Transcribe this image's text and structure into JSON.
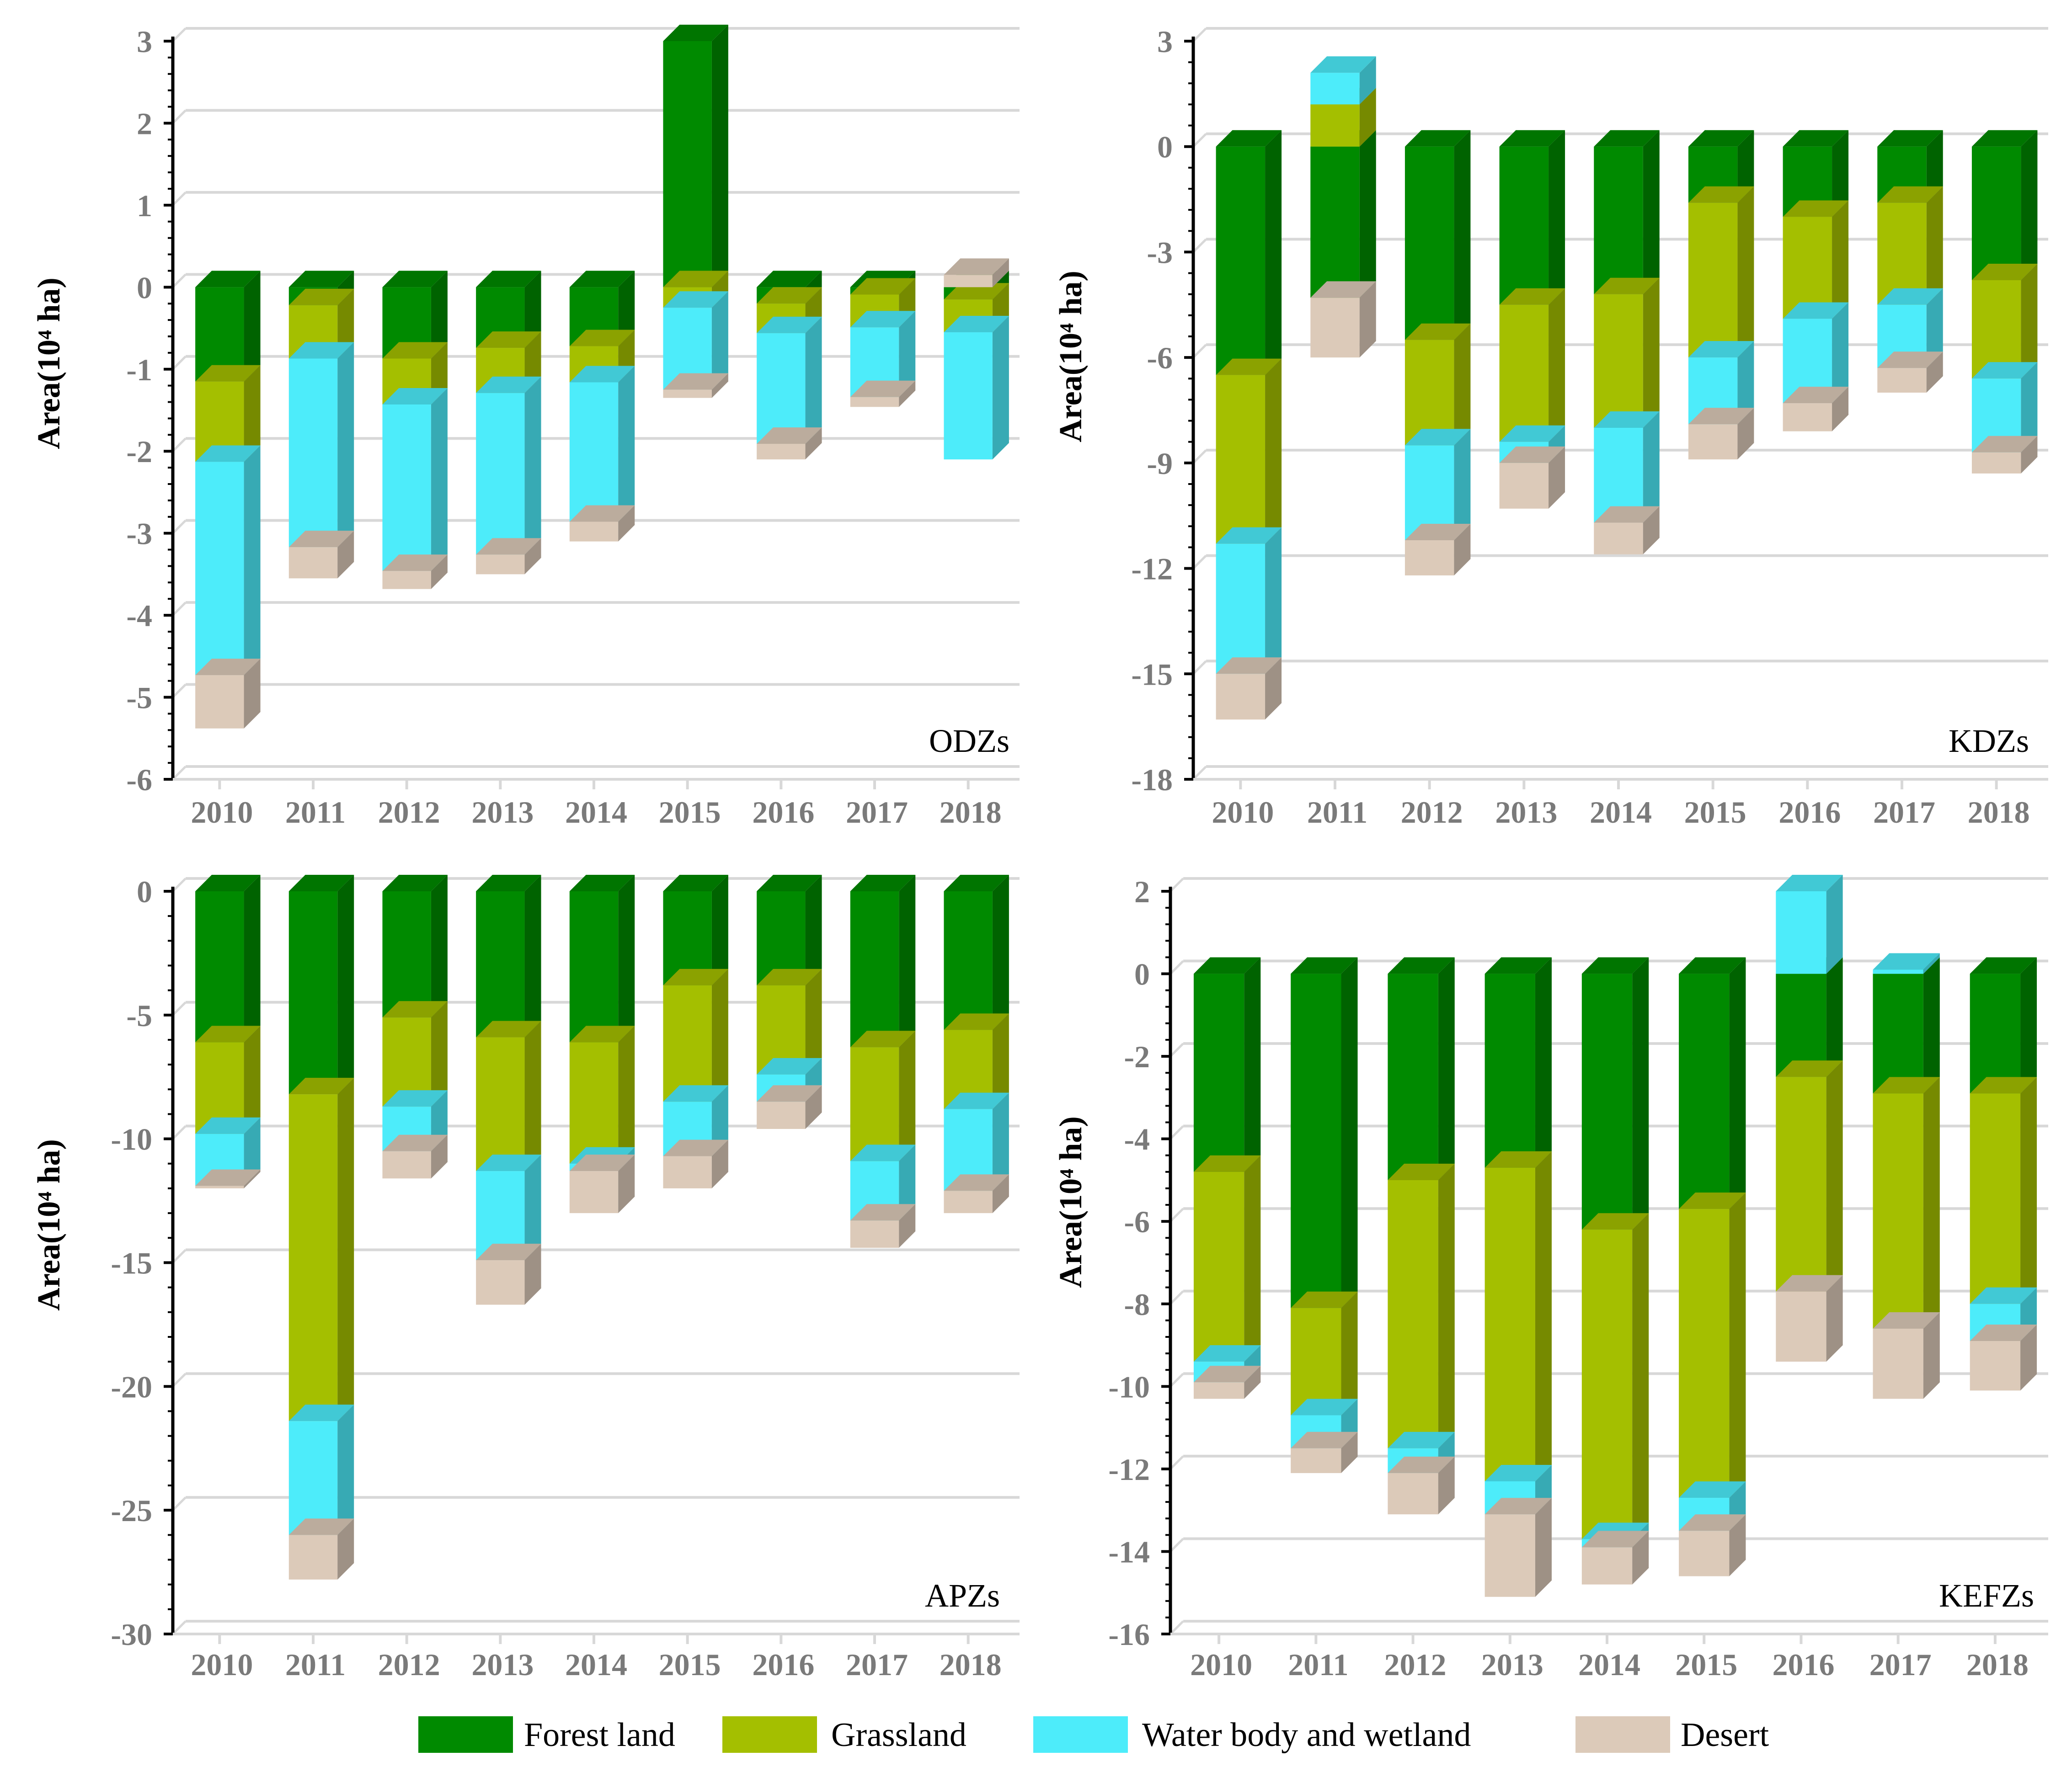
{
  "colors": {
    "forest": "#008a00",
    "grassland": "#a4bf00",
    "water": "#4decfa",
    "desert": "#dccab9",
    "axis": "#000000",
    "grid": "#d8d8d8",
    "tick_text": "#7a7a7a"
  },
  "legend": [
    {
      "key": "forest",
      "label": "Forest land"
    },
    {
      "key": "grassland",
      "label": "Grassland"
    },
    {
      "key": "water",
      "label": "Water body and wetland"
    },
    {
      "key": "desert",
      "label": "Desert"
    }
  ],
  "chart_data": [
    {
      "type": "bar",
      "stacked": true,
      "panel_label": "ODZs",
      "ylabel": "Area(10⁴ ha)",
      "ylim": [
        -6,
        3
      ],
      "yticks": [
        3,
        2,
        1,
        0,
        -1,
        -2,
        -3,
        -4,
        -5,
        -6
      ],
      "ytick_labels": [
        "3",
        "2",
        "1",
        "0",
        "-1",
        "-2",
        "-3",
        "-4",
        "-5",
        "-6"
      ],
      "categories": [
        "2010",
        "2011",
        "2012",
        "2013",
        "2014",
        "2015",
        "2016",
        "2017",
        "2018"
      ],
      "series": [
        {
          "key": "forest",
          "name": "Forest land",
          "values": [
            -1.15,
            -0.22,
            -0.87,
            -0.74,
            -0.72,
            3.0,
            -0.2,
            -0.09,
            -0.15
          ]
        },
        {
          "key": "grassland",
          "name": "Grassland",
          "values": [
            -0.98,
            -0.65,
            -0.56,
            -0.55,
            -0.44,
            -0.25,
            -0.36,
            -0.4,
            -0.4
          ]
        },
        {
          "key": "water",
          "name": "Water body and wetland",
          "values": [
            -2.6,
            -2.3,
            -2.03,
            -1.97,
            -1.7,
            -1.0,
            -1.35,
            -0.85,
            -1.55
          ]
        },
        {
          "key": "desert",
          "name": "Desert",
          "values": [
            -0.65,
            -0.38,
            -0.22,
            -0.24,
            -0.24,
            -0.1,
            -0.19,
            -0.12,
            0.15
          ]
        }
      ]
    },
    {
      "type": "bar",
      "stacked": true,
      "panel_label": "KDZs",
      "ylabel": "Area(10⁴ ha)",
      "ylim": [
        -18,
        3
      ],
      "yticks": [
        3,
        0,
        -3,
        -6,
        -9,
        -12,
        -15,
        -18
      ],
      "ytick_labels": [
        "3",
        "0",
        "-3",
        "-6",
        "-9",
        "-12",
        "-15",
        "-18"
      ],
      "categories": [
        "2010",
        "2011",
        "2012",
        "2013",
        "2014",
        "2015",
        "2016",
        "2017",
        "2018"
      ],
      "series": [
        {
          "key": "forest",
          "name": "Forest land",
          "values": [
            -6.5,
            -4.3,
            -5.5,
            -4.5,
            -4.2,
            -1.6,
            -2.0,
            -1.6,
            -3.8
          ]
        },
        {
          "key": "grassland",
          "name": "Grassland",
          "values": [
            -4.8,
            1.2,
            -3.0,
            -3.9,
            -3.8,
            -4.4,
            -2.9,
            -2.9,
            -2.8
          ]
        },
        {
          "key": "water",
          "name": "Water body and wetland",
          "values": [
            -3.7,
            0.9,
            -2.7,
            -0.6,
            -2.7,
            -1.9,
            -2.4,
            -1.8,
            -2.1
          ]
        },
        {
          "key": "desert",
          "name": "Desert",
          "values": [
            -1.3,
            -1.7,
            -1.0,
            -1.3,
            -0.9,
            -1.0,
            -0.8,
            -0.7,
            -0.6
          ]
        }
      ]
    },
    {
      "type": "bar",
      "stacked": true,
      "panel_label": "APZs",
      "ylabel": "Area(10⁴ ha)",
      "ylim": [
        -30,
        0
      ],
      "yticks": [
        0,
        -5,
        -10,
        -15,
        -20,
        -25,
        -30
      ],
      "ytick_labels": [
        "0",
        "-5",
        "-10",
        "-15",
        "-20",
        "-25",
        "-30"
      ],
      "categories": [
        "2010",
        "2011",
        "2012",
        "2013",
        "2014",
        "2015",
        "2016",
        "2017",
        "2018"
      ],
      "series": [
        {
          "key": "forest",
          "name": "Forest land",
          "values": [
            -6.1,
            -8.2,
            -5.1,
            -5.9,
            -6.1,
            -3.8,
            -3.8,
            -6.3,
            -5.6
          ]
        },
        {
          "key": "grassland",
          "name": "Grassland",
          "values": [
            -3.7,
            -13.2,
            -3.6,
            -5.4,
            -4.9,
            -4.7,
            -3.6,
            -4.6,
            -3.2
          ]
        },
        {
          "key": "water",
          "name": "Water body and wetland",
          "values": [
            -2.1,
            -4.6,
            -1.8,
            -3.6,
            -0.3,
            -2.2,
            -1.1,
            -2.4,
            -3.3
          ]
        },
        {
          "key": "desert",
          "name": "Desert",
          "values": [
            -0.1,
            -1.8,
            -1.1,
            -1.8,
            -1.7,
            -1.3,
            -1.1,
            -1.1,
            -0.9
          ]
        }
      ]
    },
    {
      "type": "bar",
      "stacked": true,
      "panel_label": "KEFZs",
      "ylabel": "Area(10⁴ ha)",
      "ylim": [
        -16,
        2
      ],
      "yticks": [
        2,
        0,
        -2,
        -4,
        -6,
        -8,
        -10,
        -12,
        -14,
        -16
      ],
      "ytick_labels": [
        "2",
        "0",
        "-2",
        "-4",
        "-6",
        "-8",
        "-10",
        "-12",
        "-14",
        "-16"
      ],
      "categories": [
        "2010",
        "2011",
        "2012",
        "2013",
        "2014",
        "2015",
        "2016",
        "2017",
        "2018"
      ],
      "series": [
        {
          "key": "forest",
          "name": "Forest land",
          "values": [
            -4.8,
            -8.1,
            -5.0,
            -4.7,
            -6.2,
            -5.7,
            -2.5,
            -2.9,
            -2.9
          ]
        },
        {
          "key": "grassland",
          "name": "Grassland",
          "values": [
            -4.6,
            -2.6,
            -6.5,
            -7.6,
            -7.5,
            -7.0,
            -5.2,
            -5.7,
            -5.1
          ]
        },
        {
          "key": "water",
          "name": "Water body and wetland",
          "values": [
            -0.5,
            -0.8,
            -0.6,
            -0.8,
            -0.2,
            -0.8,
            2.0,
            0.1,
            -0.9
          ]
        },
        {
          "key": "desert",
          "name": "Desert",
          "values": [
            -0.4,
            -0.6,
            -1.0,
            -2.0,
            -0.9,
            -1.1,
            -1.7,
            -1.7,
            -1.2
          ]
        }
      ]
    }
  ]
}
